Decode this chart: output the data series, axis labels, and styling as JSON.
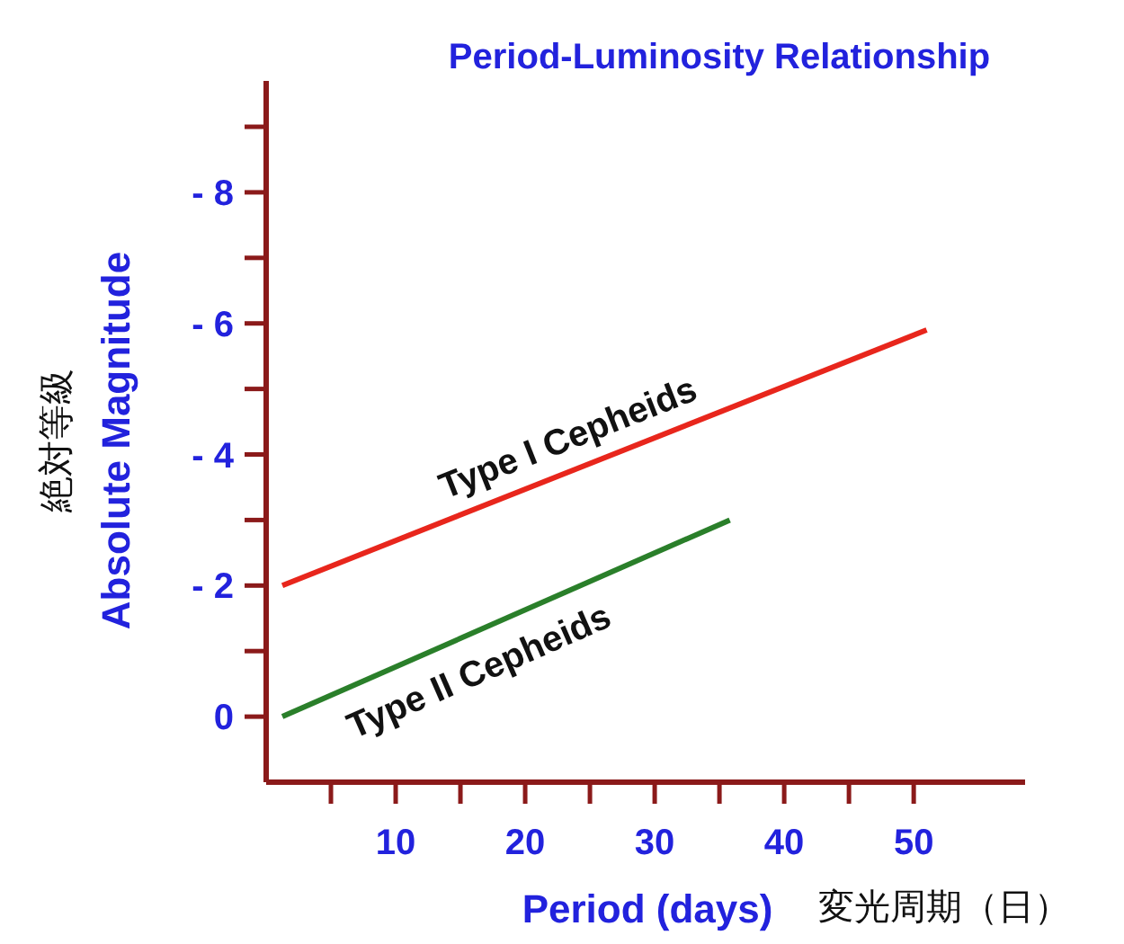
{
  "chart_data": {
    "type": "line",
    "title": "Period-Luminosity Relationship",
    "xlabel": "Period (days)",
    "ylabel": "Absolute Magnitude",
    "annotations": [
      "変光周期（日）",
      "絶対等級"
    ],
    "xlim": [
      0,
      58.6
    ],
    "ylim": [
      1,
      -9.7
    ],
    "xticks": [
      {
        "value": 5,
        "label": null
      },
      10,
      {
        "value": 15,
        "label": null
      },
      20,
      {
        "value": 25,
        "label": null
      },
      30,
      {
        "value": 35,
        "label": null
      },
      40,
      {
        "value": 45,
        "label": null
      },
      50
    ],
    "yticks": [
      {
        "value": 0,
        "label": "0"
      },
      {
        "value": -1,
        "label": null
      },
      {
        "value": -2,
        "label": "- 2"
      },
      {
        "value": -3,
        "label": null
      },
      {
        "value": -4,
        "label": "- 4"
      },
      {
        "value": -5,
        "label": null
      },
      {
        "value": -6,
        "label": "- 6"
      },
      {
        "value": -7,
        "label": null
      },
      {
        "value": -8,
        "label": "- 8"
      },
      {
        "value": -9,
        "label": null
      }
    ],
    "grid": false,
    "legend": false,
    "marker": "none",
    "line_style": "solid",
    "series": [
      {
        "name": "Type I Cepheids",
        "color": "#e8261c",
        "x": [
          1.25,
          51
        ],
        "values": [
          -2,
          -5.9
        ]
      },
      {
        "name": "Type II Cepheids",
        "color": "#2a7f2a",
        "x": [
          1.25,
          35.8
        ],
        "values": [
          0,
          -3
        ]
      }
    ]
  }
}
